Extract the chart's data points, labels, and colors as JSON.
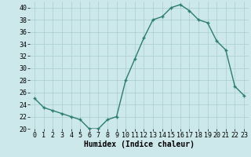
{
  "x": [
    0,
    1,
    2,
    3,
    4,
    5,
    6,
    7,
    8,
    9,
    10,
    11,
    12,
    13,
    14,
    15,
    16,
    17,
    18,
    19,
    20,
    21,
    22,
    23
  ],
  "y": [
    25,
    23.5,
    23,
    22.5,
    22,
    21.5,
    20,
    20,
    21.5,
    22,
    28,
    31.5,
    35,
    38,
    38.5,
    40,
    40.5,
    39.5,
    38,
    37.5,
    34.5,
    33,
    27,
    25.5
  ],
  "line_color": "#2d7d6e",
  "marker": "+",
  "marker_size": 3,
  "marker_lw": 1.0,
  "bg_color": "#cce8ea",
  "grid_color": "#aacdd0",
  "xlabel": "Humidex (Indice chaleur)",
  "xlim": [
    -0.5,
    23.5
  ],
  "ylim": [
    20,
    41
  ],
  "yticks": [
    20,
    22,
    24,
    26,
    28,
    30,
    32,
    34,
    36,
    38,
    40
  ],
  "xticks": [
    0,
    1,
    2,
    3,
    4,
    5,
    6,
    7,
    8,
    9,
    10,
    11,
    12,
    13,
    14,
    15,
    16,
    17,
    18,
    19,
    20,
    21,
    22,
    23
  ],
  "xlabel_fontsize": 7,
  "tick_fontsize": 6,
  "line_width": 1.0
}
